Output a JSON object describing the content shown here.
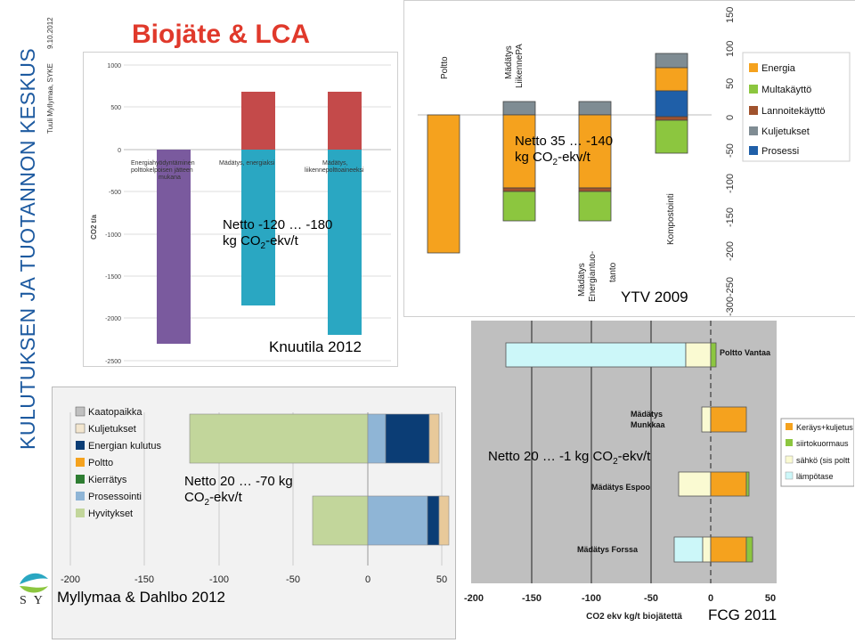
{
  "slide": {
    "title": "Biojäte & LCA",
    "side_title": "KULUTUKSEN JA TUOTANNON KESKUS",
    "side_author": "Tuuli Myllymaa, SYKE",
    "side_date": "9.10.2012",
    "logo_text": "SY"
  },
  "notes": {
    "knuutila_l1": "Netto -120 … -180",
    "knuutila_l2_pre": "kg CO",
    "knuutila_l2_post": "-ekv/t",
    "ytv_l1": "Netto 35 … -140",
    "ytv_l2_pre": "kg CO",
    "ytv_l2_post": "-ekv/t",
    "myl_l1": "Netto 20 … -70 kg",
    "myl_l2_pre": "CO",
    "myl_l2_post": "-ekv/t",
    "fcg_pre": "Netto 20 … -1 kg CO",
    "fcg_post": "-ekv/t",
    "sub2": "2"
  },
  "citations": {
    "knuutila": "Knuutila 2012",
    "ytv": "YTV 2009",
    "myllymaa": "Myllymaa & Dahlbo 2012",
    "fcg": "FCG 2011"
  },
  "colors": {
    "red": "#c44a4a",
    "teal": "#2aa7c2",
    "purple": "#7a5a9e",
    "orange": "#f5a21e",
    "green": "#8cc63f",
    "brown": "#a0522d",
    "gray": "#7f8c93",
    "blue": "#1f5fa8",
    "navy": "#0b3d75",
    "lightblue": "#8fb5d6",
    "lightgreen": "#c2d69b",
    "tan": "#e8c99a",
    "cyan": "#ccf7f9",
    "paleyellow": "#fafad2"
  },
  "chart_data": [
    {
      "id": "knuutila",
      "type": "bar",
      "ylabel": "CO2 t/a",
      "yticks": [
        1000,
        500,
        0,
        -500,
        -1000,
        -1500,
        -2000,
        -2500
      ],
      "ylim": [
        -2500,
        1000
      ],
      "categories": [
        "Energiahyödyntäminen polttokelpoisen jätteen mukana",
        "Mädätys, energiaksi",
        "Mädätys, liikennepolttoaineeksi"
      ],
      "series": [
        {
          "name": "positive",
          "values": [
            0,
            680,
            680
          ]
        },
        {
          "name": "negative",
          "values": [
            -2300,
            -1850,
            -2200
          ]
        }
      ]
    },
    {
      "id": "ytv",
      "type": "bar",
      "categories": [
        "Poltto",
        "Mädätys LiikennePA",
        "Mädätys Energiantuo-tanto",
        "Kompostointi"
      ],
      "yticks": [
        150,
        100,
        50,
        0,
        -50,
        -100,
        -150,
        -200,
        -250,
        -300
      ],
      "ylim": [
        -300,
        150
      ],
      "legend": [
        "Energia",
        "Multakäyttö",
        "Lannoitekäyttö",
        "Kuljetukset",
        "Prosessi"
      ],
      "series": [
        {
          "name": "Energia",
          "values": [
            -190,
            -95,
            -95,
            33
          ]
        },
        {
          "name": "Multakäyttö",
          "values": [
            0,
            -40,
            -40,
            -50
          ]
        },
        {
          "name": "Lannoitekäyttö",
          "values": [
            0,
            -5,
            -5,
            -5
          ]
        },
        {
          "name": "Kuljetukset",
          "values": [
            0,
            20,
            20,
            20
          ]
        },
        {
          "name": "Prosessi",
          "values": [
            0,
            0,
            0,
            40
          ]
        }
      ]
    },
    {
      "id": "myllymaa",
      "type": "bar",
      "orientation": "horizontal",
      "xticks": [
        "-200",
        "-150",
        "-100",
        "-50",
        "0",
        "50"
      ],
      "xlim": [
        -200,
        60
      ],
      "legend": [
        "Kaatopaikka",
        "Kuljetukset",
        "Energian kulutus",
        "Poltto",
        "Kierrätys",
        "Prosessointi",
        "Hyvitykset"
      ],
      "series": [
        {
          "name": "Hyvitykset",
          "values": [
            -120,
            -37
          ]
        },
        {
          "name": "Prosessointi",
          "values": [
            12,
            40
          ]
        },
        {
          "name": "Energian kulutus",
          "values": [
            29,
            8
          ]
        },
        {
          "name": "Kuljetukset",
          "values": [
            7,
            7
          ]
        }
      ]
    },
    {
      "id": "fcg",
      "type": "bar",
      "orientation": "horizontal",
      "xlabel": "CO2 ekv kg/t biojätettä",
      "xticks": [
        "-200",
        "-150",
        "-100",
        "-50",
        "0",
        "50"
      ],
      "xlim": [
        -200,
        50
      ],
      "categories": [
        "Poltto Vantaa",
        "Mädätys Munkkaa",
        "Mädätys Espoo",
        "Mädätys Forssa"
      ],
      "legend": [
        "Keräys+kuljetus",
        "siirtokuormaus",
        "sähkö (sis poltt",
        "lämpötase"
      ],
      "series": [
        {
          "name": "lämpötase",
          "values": [
            -150,
            0,
            0,
            -25
          ]
        },
        {
          "name": "sähkö",
          "values": [
            -25,
            -8,
            -28,
            -7
          ]
        },
        {
          "name": "siirtokuormaus",
          "values": [
            4,
            0,
            2,
            5
          ]
        },
        {
          "name": "Keräys+kuljetus",
          "values": [
            0,
            30,
            30,
            30
          ]
        }
      ]
    }
  ]
}
